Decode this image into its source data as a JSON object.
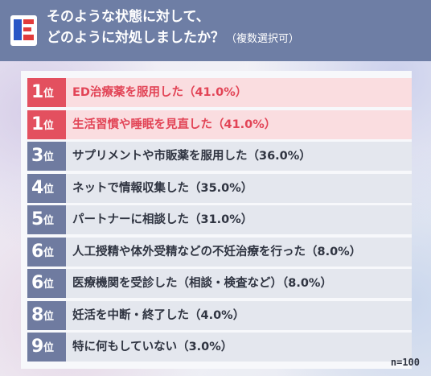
{
  "header": {
    "title_line1": "そのような状態に対して、",
    "title_line2": "どのように対処しましたか？",
    "title_note": "（複数選択可）"
  },
  "colors": {
    "header_bg": "#6e7ea5",
    "top_row_bg": "#fadde0",
    "top_badge_bg": "#e3505f",
    "top_text": "#e24456",
    "row_bg": "#e4e7ee",
    "badge_bg": "#6f7ba0",
    "text": "#2f3441"
  },
  "chart_data": {
    "type": "table",
    "sample_size": "n=100",
    "rows": [
      {
        "rank": "1",
        "rank_suffix": "位",
        "label": "ED治療薬を服用した（41.0%）",
        "value": 41.0,
        "highlight": true
      },
      {
        "rank": "1",
        "rank_suffix": "位",
        "label": "生活習慣や睡眠を見直した（41.0%）",
        "value": 41.0,
        "highlight": true
      },
      {
        "rank": "3",
        "rank_suffix": "位",
        "label": "サプリメントや市販薬を服用した（36.0%）",
        "value": 36.0,
        "highlight": false
      },
      {
        "rank": "4",
        "rank_suffix": "位",
        "label": "ネットで情報収集した（35.0%）",
        "value": 35.0,
        "highlight": false
      },
      {
        "rank": "5",
        "rank_suffix": "位",
        "label": "パートナーに相談した（31.0%）",
        "value": 31.0,
        "highlight": false
      },
      {
        "rank": "6",
        "rank_suffix": "位",
        "label": "人工授精や体外受精などの不妊治療を行った（8.0%）",
        "value": 8.0,
        "highlight": false
      },
      {
        "rank": "6",
        "rank_suffix": "位",
        "label": "医療機関を受診した（相談・検査など）（8.0%）",
        "value": 8.0,
        "highlight": false
      },
      {
        "rank": "8",
        "rank_suffix": "位",
        "label": "妊活を中断・終了した（4.0%）",
        "value": 4.0,
        "highlight": false
      },
      {
        "rank": "9",
        "rank_suffix": "位",
        "label": "特に何もしていない（3.0%）",
        "value": 3.0,
        "highlight": false
      }
    ]
  }
}
